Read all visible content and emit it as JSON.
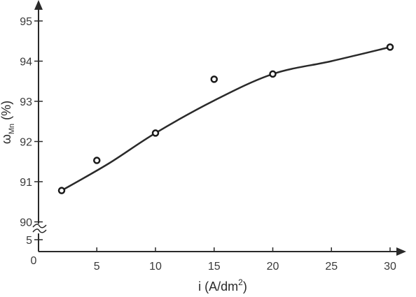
{
  "chart_data": {
    "type": "scatter",
    "title": "",
    "xlabel": {
      "main": "i (A/dm",
      "sup": "2",
      "tail": ")"
    },
    "ylabel": {
      "main": "ω",
      "sub": "Mn",
      "tail": " (%)"
    },
    "origin_label": "0",
    "x_ticks": [
      5,
      10,
      15,
      20,
      25,
      30
    ],
    "x_tick_labels": [
      "5",
      "10",
      "15",
      "20",
      "25",
      "30"
    ],
    "y_ticks": [
      90,
      91,
      92,
      93,
      94,
      95
    ],
    "y_tick_labels": [
      "90",
      "91",
      "92",
      "93",
      "94",
      "95"
    ],
    "y_low_tick": 5,
    "y_low_tick_label": "5",
    "y_axis_break": true,
    "x_axis_break_at": 27.5,
    "series": [
      {
        "points": [
          {
            "x": 2,
            "y": 90.78
          },
          {
            "x": 5,
            "y": 91.53
          },
          {
            "x": 10,
            "y": 92.21
          },
          {
            "x": 15,
            "y": 93.55
          },
          {
            "x": 20,
            "y": 93.68
          },
          {
            "x": 30,
            "y": 94.35
          }
        ],
        "marker": "open-circle"
      }
    ],
    "fit_curve": [
      {
        "x": 2,
        "y": 90.78
      },
      {
        "x": 6,
        "y": 91.45
      },
      {
        "x": 10,
        "y": 92.21
      },
      {
        "x": 15,
        "y": 93.02
      },
      {
        "x": 20,
        "y": 93.68
      },
      {
        "x": 25,
        "y": 94.0
      },
      {
        "x": 30,
        "y": 94.35
      }
    ],
    "colors": {
      "axis": "#2a2a2a",
      "curve": "#2a2a2a",
      "marker": "#1a1a1a",
      "text": "#3a3a3a"
    }
  }
}
